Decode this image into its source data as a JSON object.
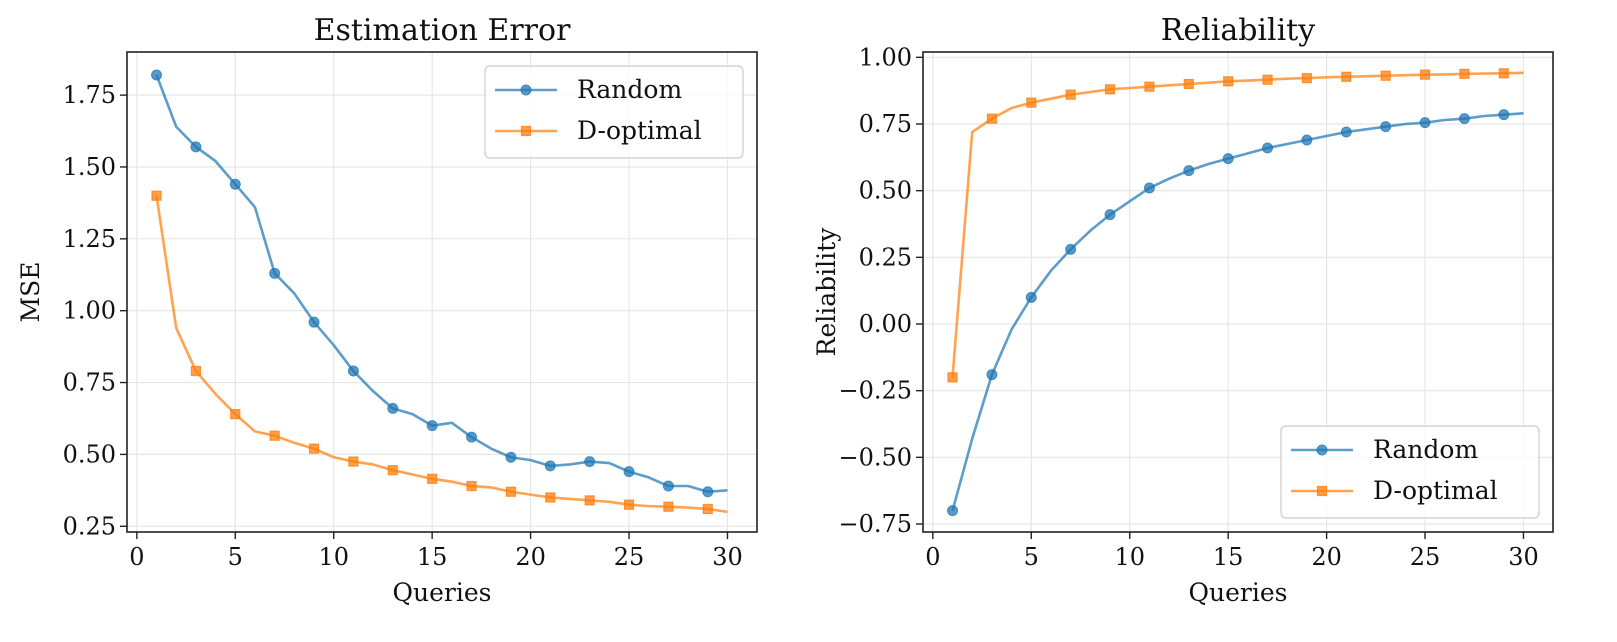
{
  "chart_data": [
    {
      "type": "line",
      "title": "Estimation Error",
      "xlabel": "Queries",
      "ylabel": "MSE",
      "xlim": [
        -0.5,
        31.5
      ],
      "ylim": [
        0.23,
        1.9
      ],
      "xticks": [
        0,
        5,
        10,
        15,
        20,
        25,
        30
      ],
      "yticks": [
        0.25,
        0.5,
        0.75,
        1.0,
        1.25,
        1.5,
        1.75
      ],
      "ytick_labels": [
        "0.25",
        "0.50",
        "0.75",
        "1.00",
        "1.25",
        "1.50",
        "1.75"
      ],
      "xtick_labels": [
        "0",
        "5",
        "10",
        "15",
        "20",
        "25",
        "30"
      ],
      "grid": true,
      "legend": "top-right",
      "x": [
        1,
        2,
        3,
        4,
        5,
        6,
        7,
        8,
        9,
        10,
        11,
        12,
        13,
        14,
        15,
        16,
        17,
        18,
        19,
        20,
        21,
        22,
        23,
        24,
        25,
        26,
        27,
        28,
        29,
        30
      ],
      "series": [
        {
          "name": "Random",
          "color": "#1f77b4",
          "marker": "circle",
          "values": [
            1.82,
            1.64,
            1.57,
            1.52,
            1.44,
            1.36,
            1.13,
            1.06,
            0.96,
            0.88,
            0.79,
            0.72,
            0.66,
            0.64,
            0.6,
            0.61,
            0.56,
            0.52,
            0.49,
            0.48,
            0.46,
            0.465,
            0.475,
            0.47,
            0.44,
            0.42,
            0.39,
            0.39,
            0.37,
            0.375
          ]
        },
        {
          "name": "D-optimal",
          "color": "#ff7f0e",
          "marker": "square",
          "values": [
            1.4,
            0.94,
            0.79,
            0.71,
            0.64,
            0.58,
            0.565,
            0.54,
            0.52,
            0.49,
            0.475,
            0.465,
            0.445,
            0.43,
            0.415,
            0.405,
            0.39,
            0.385,
            0.37,
            0.36,
            0.35,
            0.345,
            0.34,
            0.335,
            0.325,
            0.32,
            0.318,
            0.315,
            0.31,
            0.3
          ]
        }
      ]
    },
    {
      "type": "line",
      "title": "Reliability",
      "xlabel": "Queries",
      "ylabel": "Reliability",
      "xlim": [
        -0.5,
        31.5
      ],
      "ylim": [
        -0.78,
        1.02
      ],
      "xticks": [
        0,
        5,
        10,
        15,
        20,
        25,
        30
      ],
      "yticks": [
        -0.75,
        -0.5,
        -0.25,
        0.0,
        0.25,
        0.5,
        0.75,
        1.0
      ],
      "ytick_labels": [
        "−0.75",
        "−0.50",
        "−0.25",
        "0.00",
        "0.25",
        "0.50",
        "0.75",
        "1.00"
      ],
      "xtick_labels": [
        "0",
        "5",
        "10",
        "15",
        "20",
        "25",
        "30"
      ],
      "grid": true,
      "legend": "bottom-right",
      "x": [
        1,
        2,
        3,
        4,
        5,
        6,
        7,
        8,
        9,
        10,
        11,
        12,
        13,
        14,
        15,
        16,
        17,
        18,
        19,
        20,
        21,
        22,
        23,
        24,
        25,
        26,
        27,
        28,
        29,
        30
      ],
      "series": [
        {
          "name": "Random",
          "color": "#1f77b4",
          "marker": "circle",
          "values": [
            -0.7,
            -0.43,
            -0.19,
            -0.02,
            0.1,
            0.2,
            0.28,
            0.35,
            0.41,
            0.46,
            0.51,
            0.545,
            0.575,
            0.6,
            0.62,
            0.64,
            0.66,
            0.675,
            0.69,
            0.705,
            0.72,
            0.73,
            0.74,
            0.75,
            0.755,
            0.765,
            0.77,
            0.78,
            0.785,
            0.79
          ]
        },
        {
          "name": "D-optimal",
          "color": "#ff7f0e",
          "marker": "square",
          "values": [
            -0.2,
            0.72,
            0.77,
            0.81,
            0.83,
            0.845,
            0.86,
            0.87,
            0.88,
            0.885,
            0.89,
            0.895,
            0.9,
            0.905,
            0.91,
            0.913,
            0.916,
            0.92,
            0.922,
            0.925,
            0.927,
            0.929,
            0.931,
            0.933,
            0.935,
            0.936,
            0.938,
            0.939,
            0.94,
            0.942
          ]
        }
      ]
    }
  ]
}
